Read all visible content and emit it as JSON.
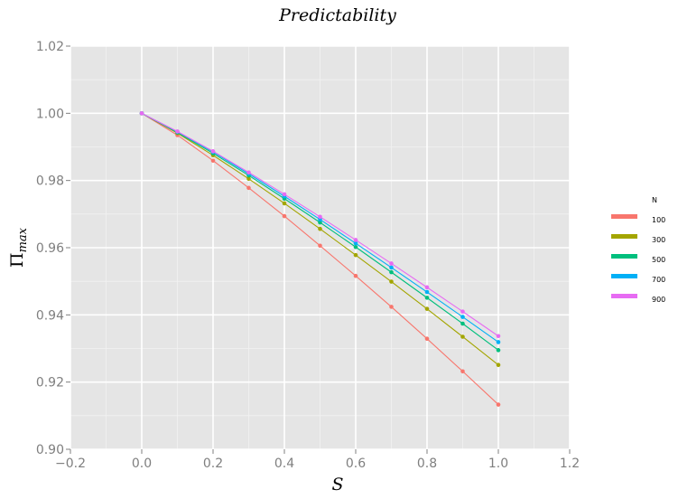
{
  "chart_data": {
    "type": "line",
    "title": "Predictability",
    "xlabel": "S",
    "ylabel_main": "Π",
    "ylabel_sub": "max",
    "xlim": [
      -0.2,
      1.2
    ],
    "ylim": [
      0.9,
      1.02
    ],
    "xticks": [
      -0.2,
      0.0,
      0.2,
      0.4,
      0.6,
      0.8,
      1.0,
      1.2
    ],
    "xtick_labels": [
      "−0.2",
      "0.0",
      "0.2",
      "0.4",
      "0.6",
      "0.8",
      "1.0",
      "1.2"
    ],
    "yticks": [
      0.9,
      0.92,
      0.94,
      0.96,
      0.98,
      1.0,
      1.02
    ],
    "ytick_labels": [
      "0.90",
      "0.92",
      "0.94",
      "0.96",
      "0.98",
      "1.00",
      "1.02"
    ],
    "grid": true,
    "legend_title": "N",
    "legend_position": "right",
    "x": [
      0.0,
      0.1,
      0.2,
      0.3,
      0.4,
      0.5,
      0.6,
      0.7,
      0.8,
      0.9,
      1.0
    ],
    "series": [
      {
        "name": "100",
        "color": "#f8766d",
        "values": [
          1.0,
          0.9935,
          0.9859,
          0.9778,
          0.9694,
          0.9606,
          0.9516,
          0.9424,
          0.9329,
          0.9232,
          0.9133
        ]
      },
      {
        "name": "300",
        "color": "#a3a500",
        "values": [
          1.0,
          0.9941,
          0.9875,
          0.9805,
          0.9732,
          0.9656,
          0.9578,
          0.9499,
          0.9418,
          0.9335,
          0.9251
        ]
      },
      {
        "name": "500",
        "color": "#00bf7d",
        "values": [
          1.0,
          0.9943,
          0.9881,
          0.9815,
          0.9746,
          0.9675,
          0.9602,
          0.9527,
          0.9451,
          0.9374,
          0.9295
        ]
      },
      {
        "name": "700",
        "color": "#00b0f6",
        "values": [
          1.0,
          0.9945,
          0.9885,
          0.982,
          0.9753,
          0.9684,
          0.9613,
          0.9541,
          0.9468,
          0.9394,
          0.9319
        ]
      },
      {
        "name": "900",
        "color": "#e76bf3",
        "values": [
          1.0,
          0.9946,
          0.9887,
          0.9824,
          0.9759,
          0.9692,
          0.9623,
          0.9553,
          0.9482,
          0.941,
          0.9337
        ]
      }
    ]
  }
}
